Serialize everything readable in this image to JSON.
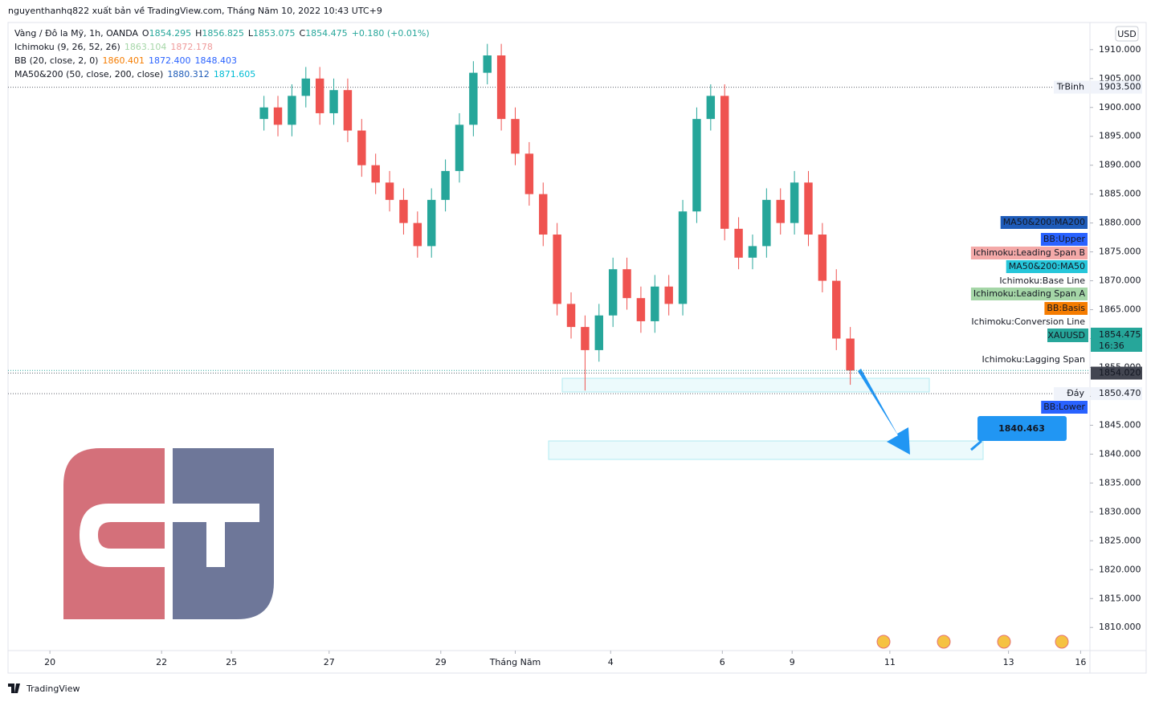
{
  "header": {
    "title": "nguyenthanhq822 xuất bản về TradingView.com, Tháng Năm 10, 2022 10:43 UTC+9"
  },
  "legend": [
    [
      {
        "text": "Vàng / Đô la Mỹ, 1h, OANDA",
        "color": "#131722"
      },
      {
        "text": "O",
        "color": "#131722"
      },
      {
        "text": "1854.295",
        "color": "#26a69a"
      },
      {
        "text": "H",
        "color": "#131722"
      },
      {
        "text": "1856.825",
        "color": "#26a69a"
      },
      {
        "text": "L",
        "color": "#131722"
      },
      {
        "text": "1853.075",
        "color": "#26a69a"
      },
      {
        "text": "C",
        "color": "#131722"
      },
      {
        "text": "1854.475",
        "color": "#26a69a"
      },
      {
        "text": "+0.180 (+0.01%)",
        "color": "#26a69a"
      }
    ],
    [
      {
        "text": "Ichimoku (9, 26, 52, 26)",
        "color": "#131722"
      },
      {
        "text": "1863.104",
        "color": "#a5d6a7"
      },
      {
        "text": "1872.178",
        "color": "#ef9a9a"
      }
    ],
    [
      {
        "text": "BB (20, close, 2, 0)",
        "color": "#131722"
      },
      {
        "text": "1860.401",
        "color": "#f57c00"
      },
      {
        "text": "1872.400",
        "color": "#2962ff"
      },
      {
        "text": "1848.403",
        "color": "#2962ff"
      }
    ],
    [
      {
        "text": "MA50&200 (50, close, 200, close)",
        "color": "#131722"
      },
      {
        "text": "1880.312",
        "color": "#1e5bb8"
      },
      {
        "text": "1871.605",
        "color": "#00bcd4"
      }
    ]
  ],
  "currency": "USD",
  "badges": [
    {
      "label": "MA50&200:MA200",
      "bg": "#1e5bb8",
      "fg": "#ffffff"
    },
    {
      "label": "BB:Upper",
      "bg": "#2962ff",
      "fg": "#ffffff"
    },
    {
      "label": "Ichimoku:Leading Span B",
      "bg": "#f4a9a8",
      "fg": "#131722"
    },
    {
      "label": "MA50&200:MA50",
      "bg": "#26c6da",
      "fg": "#131722"
    },
    {
      "label": "Ichimoku:Base Line",
      "bg": "#ffffff",
      "fg": "#131722"
    },
    {
      "label": "Ichimoku:Leading Span A",
      "bg": "#a5d6a7",
      "fg": "#131722"
    },
    {
      "label": "BB:Basis",
      "bg": "#f57c00",
      "fg": "#ffffff"
    },
    {
      "label": "Ichimoku:Conversion Line",
      "bg": "#ffffff",
      "fg": "#131722"
    },
    {
      "label": "Ichimoku:Lagging Span",
      "bg": "#ffffff",
      "fg": "#131722"
    },
    {
      "label": "BB:Lower",
      "bg": "#2962ff",
      "fg": "#ffffff"
    }
  ],
  "chart_data": {
    "type": "candlestick",
    "x": [
      110,
      116,
      122,
      128,
      134,
      140,
      146,
      152,
      158,
      164,
      170,
      176,
      182,
      188,
      194,
      200,
      206,
      212,
      218,
      224,
      230,
      236,
      242,
      248,
      254,
      260,
      266,
      272,
      278,
      284,
      290,
      296,
      302,
      308,
      314,
      320,
      326,
      332,
      338,
      344,
      350,
      356,
      362
    ],
    "open": [
      1898,
      1900,
      1897,
      1902,
      1905,
      1899,
      1903,
      1896,
      1890,
      1887,
      1884,
      1880,
      1876,
      1884,
      1889,
      1897,
      1906,
      1909,
      1898,
      1892,
      1885,
      1878,
      1866,
      1862,
      1858,
      1864,
      1872,
      1867,
      1863,
      1869,
      1866,
      1882,
      1898,
      1902,
      1879,
      1874,
      1876,
      1884,
      1880,
      1887,
      1878,
      1870,
      1860
    ],
    "high": [
      1902,
      1902,
      1904,
      1907,
      1907,
      1905,
      1905,
      1898,
      1892,
      1889,
      1886,
      1882,
      1886,
      1891,
      1899,
      1908,
      1911,
      1911,
      1900,
      1894,
      1887,
      1880,
      1868,
      1864,
      1866,
      1874,
      1874,
      1869,
      1871,
      1871,
      1884,
      1900,
      1904,
      1904,
      1881,
      1878,
      1886,
      1886,
      1889,
      1889,
      1880,
      1872,
      1862
    ],
    "low": [
      1896,
      1895,
      1895,
      1900,
      1897,
      1897,
      1894,
      1888,
      1885,
      1882,
      1878,
      1874,
      1874,
      1882,
      1887,
      1895,
      1904,
      1896,
      1890,
      1883,
      1876,
      1864,
      1860,
      1851,
      1856,
      1862,
      1865,
      1861,
      1861,
      1864,
      1864,
      1880,
      1896,
      1877,
      1872,
      1872,
      1874,
      1878,
      1878,
      1876,
      1868,
      1858,
      1852
    ],
    "close": [
      1900,
      1897,
      1902,
      1905,
      1899,
      1903,
      1896,
      1890,
      1887,
      1884,
      1880,
      1876,
      1884,
      1889,
      1897,
      1906,
      1909,
      1898,
      1892,
      1885,
      1878,
      1866,
      1862,
      1858,
      1864,
      1872,
      1867,
      1863,
      1869,
      1866,
      1882,
      1898,
      1902,
      1879,
      1874,
      1876,
      1884,
      1880,
      1887,
      1878,
      1870,
      1860,
      1854.475
    ],
    "up_color": "#26a69a",
    "down_color": "#ef5350",
    "xlim": [
      0,
      465
    ],
    "xticks": [
      {
        "value": 18,
        "label": "20"
      },
      {
        "value": 66,
        "label": "22"
      },
      {
        "value": 96,
        "label": "25"
      },
      {
        "value": 138,
        "label": "27"
      },
      {
        "value": 186,
        "label": "29"
      },
      {
        "value": 218,
        "label": "Tháng Năm"
      },
      {
        "value": 259,
        "label": "4"
      },
      {
        "value": 307,
        "label": "6"
      },
      {
        "value": 337,
        "label": "9"
      },
      {
        "value": 379,
        "label": "11"
      },
      {
        "value": 430,
        "label": "13"
      },
      {
        "value": 461,
        "label": "16"
      }
    ],
    "ylim": [
      1806,
      1914.7
    ],
    "yticks": [
      {
        "value": 1810,
        "label": "1810.000"
      },
      {
        "value": 1815,
        "label": "1815.000"
      },
      {
        "value": 1820,
        "label": "1820.000"
      },
      {
        "value": 1825,
        "label": "1825.000"
      },
      {
        "value": 1830,
        "label": "1830.000"
      },
      {
        "value": 1835,
        "label": "1835.000"
      },
      {
        "value": 1840,
        "label": "1840.000"
      },
      {
        "value": 1845,
        "label": "1845.000"
      },
      {
        "value": 1850,
        "label": "1850.000"
      },
      {
        "value": 1855,
        "label": "1855.000"
      },
      {
        "value": 1860,
        "label": "1860.000"
      },
      {
        "value": 1865,
        "label": "1865.000"
      },
      {
        "value": 1870,
        "label": "1870.000"
      },
      {
        "value": 1875,
        "label": "1875.000"
      },
      {
        "value": 1880,
        "label": "1880.000"
      },
      {
        "value": 1885,
        "label": "1885.000"
      },
      {
        "value": 1890,
        "label": "1890.000"
      },
      {
        "value": 1895,
        "label": "1895.000"
      },
      {
        "value": 1900,
        "label": "1900.000"
      },
      {
        "value": 1905,
        "label": "1905.000"
      },
      {
        "value": 1910,
        "label": "1910.000"
      }
    ],
    "levels": [
      {
        "label": "TrBinh",
        "value": 1903.5,
        "value_label": "1903.500"
      },
      {
        "label": "Đáy",
        "value": 1850.47,
        "value_label": "1850.470"
      },
      {
        "value": 1854.02,
        "value_label": "1854.020"
      }
    ],
    "last_price": {
      "symbol": "XAUUSD",
      "value": 1854.475,
      "value_label": "1854.475",
      "countdown": "16:36"
    },
    "target": {
      "value": 1840.463,
      "label": "1840.463"
    }
  },
  "footer": {
    "brand": "TradingView"
  }
}
